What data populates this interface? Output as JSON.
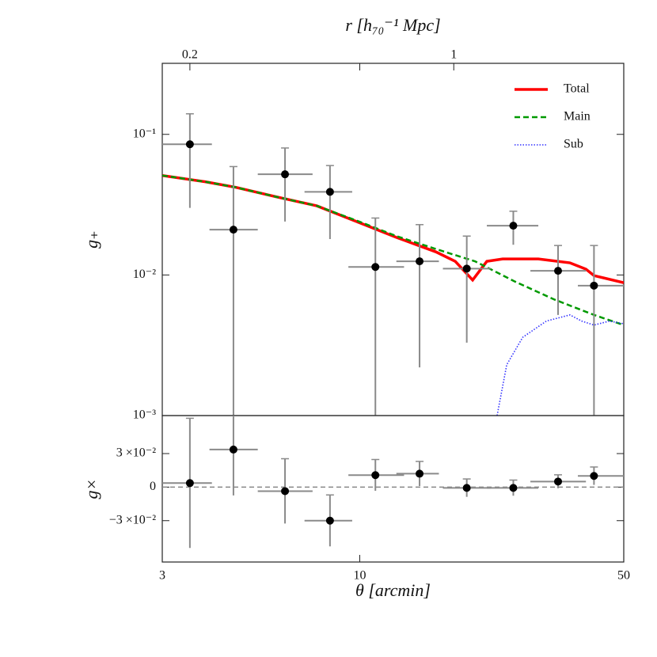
{
  "chart_data": [
    {
      "type": "scatter",
      "xscale": "log",
      "yscale": "log",
      "xlim": [
        3,
        50
      ],
      "ylim": [
        0.001,
        0.32
      ],
      "yticks": [
        {
          "value": 0.001,
          "label": "10⁻³"
        },
        {
          "value": 0.01,
          "label": "10⁻²"
        },
        {
          "value": 0.1,
          "label": "10⁻¹"
        }
      ],
      "ylabel": "g₊",
      "x2label": "r  [h₇₀⁻¹  Mpc]",
      "x2lim": [
        0.169,
        2.82
      ],
      "x2ticks": [
        0.2,
        1
      ],
      "legend": "upper right",
      "points": {
        "color": "#000000",
        "errcolor": "#8a8a8a",
        "x": [
          3.55,
          4.63,
          6.34,
          8.34,
          11.0,
          14.4,
          19.2,
          25.5,
          33.5,
          41.7
        ],
        "xmin": [
          3.0,
          4.0,
          5.37,
          7.14,
          9.33,
          12.5,
          16.6,
          21.7,
          28.3,
          37.8
        ],
        "xmax": [
          4.06,
          5.37,
          7.5,
          9.55,
          13.1,
          16.2,
          22.2,
          29.7,
          39.7,
          50
        ],
        "values": [
          0.085,
          0.021,
          0.052,
          0.039,
          0.0114,
          0.0125,
          0.0111,
          0.0224,
          0.0107,
          0.0084
        ],
        "yerr": [
          0.055,
          0.038,
          0.028,
          0.021,
          0.014,
          0.0103,
          0.0078,
          0.006,
          0.0055,
          0.0078
        ]
      },
      "series": [
        {
          "name": "Total",
          "color": "#ff0000",
          "linestyle": "solid",
          "x": [
            3,
            3.9,
            4.7,
            6,
            7.7,
            10,
            12.5,
            15.9,
            17.9,
            19.9,
            21.7,
            23.9,
            29.7,
            36.0,
            39.7,
            41.7,
            50
          ],
          "values": [
            0.051,
            0.046,
            0.042,
            0.036,
            0.031,
            0.0235,
            0.0185,
            0.0146,
            0.0125,
            0.0092,
            0.0125,
            0.013,
            0.013,
            0.0122,
            0.011,
            0.0099,
            0.0088
          ]
        },
        {
          "name": "Main",
          "color": "#009900",
          "linestyle": "dashed",
          "x": [
            3,
            3.9,
            4.7,
            6,
            7.7,
            10,
            12.5,
            15.9,
            20.2,
            25.7,
            32.7,
            41.7,
            50
          ],
          "values": [
            0.051,
            0.046,
            0.042,
            0.036,
            0.031,
            0.0239,
            0.0189,
            0.0153,
            0.0125,
            0.009,
            0.0067,
            0.0052,
            0.0044
          ]
        },
        {
          "name": "Sub",
          "color": "#3333ff",
          "linestyle": "dotted",
          "x": [
            23.1,
            24.5,
            27.0,
            31.2,
            36.0,
            38.7,
            41.7,
            45.8,
            50
          ],
          "values": [
            0.001,
            0.0023,
            0.0036,
            0.0047,
            0.0052,
            0.0047,
            0.0044,
            0.0047,
            0.0045
          ]
        }
      ]
    },
    {
      "type": "scatter",
      "xscale": "log",
      "yscale": "linear",
      "xlim": [
        3,
        50
      ],
      "ylim": [
        -0.067,
        0.064
      ],
      "xticks": [
        3,
        10,
        50
      ],
      "xlabel": "θ  [arcmin]",
      "yticks": [
        {
          "value": -0.03,
          "label": "−3 ×10⁻²"
        },
        0,
        {
          "value": 0.03,
          "label": "3 ×10⁻²"
        }
      ],
      "ylabel": "g×",
      "hline": 0,
      "points": {
        "color": "#000000",
        "errcolor": "#8a8a8a",
        "x": [
          3.55,
          4.63,
          6.34,
          8.34,
          11.0,
          14.4,
          19.2,
          25.5,
          33.5,
          41.7
        ],
        "xmin": [
          3.0,
          4.0,
          5.37,
          7.14,
          9.33,
          12.5,
          16.6,
          21.7,
          28.3,
          37.8
        ],
        "xmax": [
          4.06,
          5.37,
          7.5,
          9.55,
          13.1,
          16.2,
          22.2,
          29.7,
          39.7,
          50
        ],
        "values": [
          0.0036,
          0.0336,
          -0.0036,
          -0.03,
          0.0107,
          0.012,
          -0.0007,
          -0.0007,
          0.005,
          0.01
        ],
        "yerr": [
          0.058,
          0.041,
          0.029,
          0.023,
          0.014,
          0.011,
          0.008,
          0.007,
          0.006,
          0.008
        ]
      }
    }
  ]
}
